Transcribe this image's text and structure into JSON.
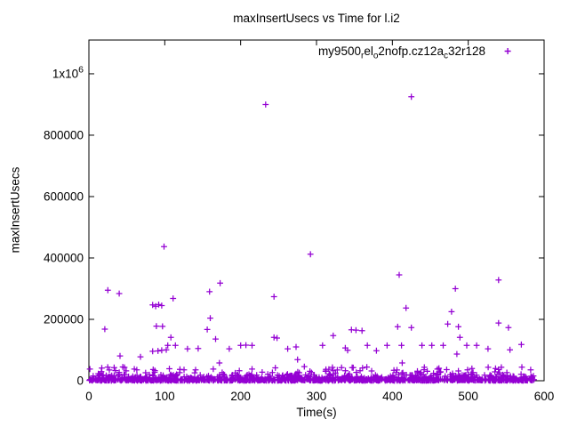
{
  "window": {
    "background": "#ffffff",
    "axis_color": "#000000",
    "text_color": "#000000"
  },
  "chart_data": {
    "type": "scatter",
    "title": "maxInsertUsecs vs Time for l.i2",
    "xlabel": "Time(s)",
    "ylabel": "maxInsertUsecs",
    "xlim": [
      0,
      600
    ],
    "ylim": [
      0,
      1110000
    ],
    "grid": false,
    "legend_position": "top-right-inside",
    "series": [
      {
        "name_plain": "my9500_rel_o2nofp.cz12a_c32r128",
        "name_parts": [
          {
            "t": "my9500"
          },
          {
            "t": "r",
            "sub": true
          },
          {
            "t": "el"
          },
          {
            "t": "o",
            "sub": true
          },
          {
            "t": "2nofp.cz12a"
          },
          {
            "t": "c",
            "sub": true
          },
          {
            "t": "32r128"
          }
        ],
        "marker": "plus",
        "color": "#9400D3"
      }
    ],
    "x_ticks": [
      0,
      100,
      200,
      300,
      400,
      500,
      600
    ],
    "y_ticks": [
      {
        "v": 0,
        "label": "0"
      },
      {
        "v": 200000,
        "label": "200000"
      },
      {
        "v": 400000,
        "label": "400000"
      },
      {
        "v": 600000,
        "label": "600000"
      },
      {
        "v": 800000,
        "label": "800000"
      },
      {
        "v": 1000000,
        "label": "1x10",
        "sup": "6"
      }
    ],
    "points": [
      [
        233,
        900000
      ],
      [
        425,
        925000
      ],
      [
        99,
        437000
      ],
      [
        292,
        412000
      ],
      [
        409,
        345000
      ],
      [
        540,
        328000
      ],
      [
        25,
        295000
      ],
      [
        40,
        284000
      ],
      [
        173,
        318000
      ],
      [
        159,
        290000
      ],
      [
        483,
        300000
      ],
      [
        111,
        268000
      ],
      [
        244,
        274000
      ],
      [
        84,
        247000
      ],
      [
        88,
        243000
      ],
      [
        92,
        248000
      ],
      [
        96,
        245000
      ],
      [
        160,
        204000
      ],
      [
        418,
        237000
      ],
      [
        478,
        225000
      ],
      [
        21,
        168000
      ],
      [
        89,
        178000
      ],
      [
        97,
        177000
      ],
      [
        156,
        167000
      ],
      [
        108,
        141000
      ],
      [
        167,
        136000
      ],
      [
        244,
        141000
      ],
      [
        248,
        139000
      ],
      [
        322,
        147000
      ],
      [
        346,
        166000
      ],
      [
        352,
        165000
      ],
      [
        360,
        163000
      ],
      [
        407,
        176000
      ],
      [
        425,
        173000
      ],
      [
        473,
        185000
      ],
      [
        487,
        176000
      ],
      [
        489,
        141000
      ],
      [
        540,
        188000
      ],
      [
        553,
        173000
      ],
      [
        104,
        115000
      ],
      [
        114,
        115000
      ],
      [
        130,
        104000
      ],
      [
        144,
        105000
      ],
      [
        185,
        104000
      ],
      [
        200,
        115000
      ],
      [
        207,
        116000
      ],
      [
        215,
        115000
      ],
      [
        262,
        104000
      ],
      [
        273,
        110000
      ],
      [
        308,
        115000
      ],
      [
        338,
        107000
      ],
      [
        341,
        99000
      ],
      [
        367,
        115000
      ],
      [
        379,
        98000
      ],
      [
        393,
        115000
      ],
      [
        412,
        115000
      ],
      [
        439,
        115000
      ],
      [
        452,
        115000
      ],
      [
        467,
        115000
      ],
      [
        498,
        115000
      ],
      [
        511,
        115000
      ],
      [
        526,
        104000
      ],
      [
        555,
        101000
      ],
      [
        570,
        118000
      ],
      [
        84,
        96000
      ],
      [
        91,
        97000
      ],
      [
        96,
        99000
      ],
      [
        102,
        101000
      ],
      [
        41,
        81000
      ],
      [
        68,
        78000
      ],
      [
        485,
        87000
      ],
      [
        172,
        58000
      ],
      [
        275,
        69000
      ],
      [
        284,
        46000
      ],
      [
        215,
        38000
      ],
      [
        164,
        38000
      ],
      [
        27,
        35000
      ],
      [
        35,
        33000
      ],
      [
        413,
        58000
      ],
      [
        536,
        40000
      ],
      [
        333,
        43000
      ],
      [
        347,
        43000
      ],
      [
        406,
        35000
      ],
      [
        487,
        32000
      ]
    ],
    "baseline_band": {
      "seed": 7,
      "x_range": [
        0.5,
        587
      ],
      "segments": [
        {
          "count": 950,
          "y": [
            0,
            6000
          ]
        },
        {
          "count": 280,
          "y": [
            6000,
            20000
          ]
        },
        {
          "count": 90,
          "y": [
            20000,
            45000
          ]
        }
      ]
    }
  }
}
